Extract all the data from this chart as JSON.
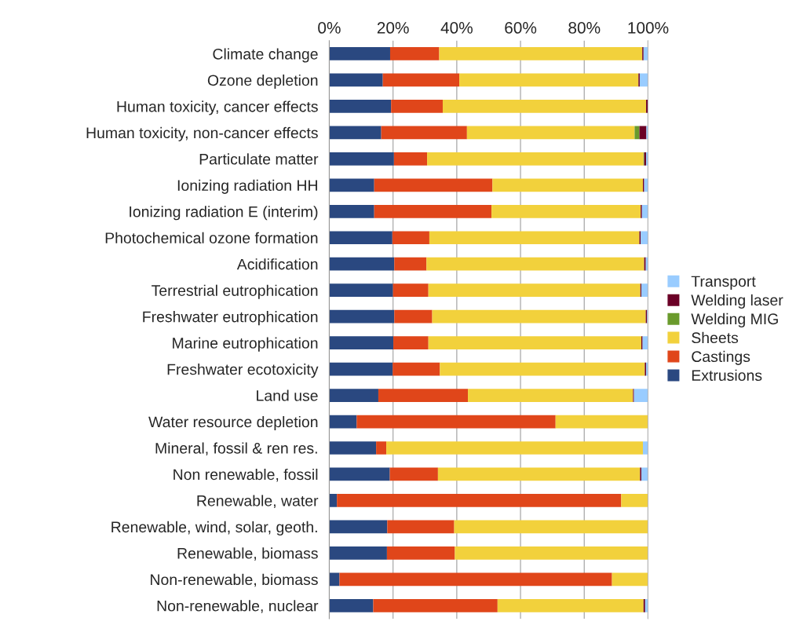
{
  "chart_data": {
    "type": "bar",
    "orientation": "horizontal",
    "stacked": true,
    "categories": [
      "Climate change",
      "Ozone depletion",
      "Human toxicity, cancer effects",
      "Human toxicity, non-cancer effects",
      "Particulate matter",
      "Ionizing radiation HH",
      "Ionizing radiation E (interim)",
      "Photochemical ozone formation",
      "Acidification",
      "Terrestrial eutrophication",
      "Freshwater eutrophication",
      "Marine eutrophication",
      "Freshwater ecotoxicity",
      "Land use",
      "Water resource depletion",
      "Mineral, fossil & ren res.",
      "Non renewable, fossil",
      "Renewable, water",
      "Renewable, wind, solar, geoth.",
      "Renewable, biomass",
      "Non-renewable, biomass",
      "Non-renewable, nuclear"
    ],
    "series": [
      {
        "name": "Extrusions",
        "color": "#2a4880",
        "values": [
          19.1,
          16.8,
          19.4,
          16.3,
          20.3,
          14.1,
          14.1,
          19.8,
          20.4,
          20.0,
          20.4,
          20.1,
          19.9,
          15.4,
          8.6,
          14.7,
          19.0,
          2.4,
          18.2,
          18.1,
          3.2,
          13.8
        ]
      },
      {
        "name": "Castings",
        "color": "#e0461a",
        "values": [
          15.4,
          24.0,
          16.2,
          26.9,
          10.4,
          37.1,
          36.8,
          11.6,
          10.1,
          11.1,
          11.9,
          11.0,
          14.8,
          28.1,
          62.4,
          3.2,
          15.1,
          89.2,
          21.0,
          21.3,
          85.5,
          39.0
        ]
      },
      {
        "name": "Sheets",
        "color": "#f2d13c",
        "values": [
          63.7,
          56.2,
          63.8,
          52.6,
          67.9,
          47.2,
          46.8,
          65.9,
          68.3,
          66.5,
          67.0,
          66.8,
          64.3,
          51.8,
          29.0,
          80.5,
          63.4,
          8.4,
          60.8,
          60.6,
          11.3,
          45.8
        ]
      },
      {
        "name": "Welding MIG",
        "color": "#6a9a2c",
        "values": [
          0,
          0,
          0,
          1.5,
          0.2,
          0,
          0,
          0,
          0,
          0,
          0,
          0,
          0,
          0,
          0,
          0,
          0,
          0,
          0,
          0,
          0,
          0
        ]
      },
      {
        "name": "Welding laser",
        "color": "#6b0026",
        "values": [
          0.4,
          0.4,
          0.6,
          2.2,
          0.6,
          0.4,
          0.4,
          0.4,
          0.5,
          0.3,
          0.4,
          0.4,
          0.4,
          0.3,
          0,
          0,
          0.4,
          0,
          0,
          0,
          0,
          0.5
        ]
      },
      {
        "name": "Transport",
        "color": "#99ccff",
        "values": [
          1.4,
          2.6,
          0,
          0.5,
          0.6,
          1.2,
          1.9,
          2.3,
          0.7,
          2.1,
          0.3,
          1.7,
          0.6,
          4.4,
          0,
          1.6,
          2.1,
          0,
          0,
          0,
          0,
          0.8
        ]
      }
    ],
    "xlim": [
      0,
      100
    ],
    "xticks": [
      {
        "value": 0,
        "label": "0%"
      },
      {
        "value": 20,
        "label": "20%"
      },
      {
        "value": 40,
        "label": "40%"
      },
      {
        "value": 60,
        "label": "60%"
      },
      {
        "value": 80,
        "label": "80%"
      },
      {
        "value": 100,
        "label": "100%"
      }
    ],
    "grid": "x",
    "legend": "right"
  }
}
